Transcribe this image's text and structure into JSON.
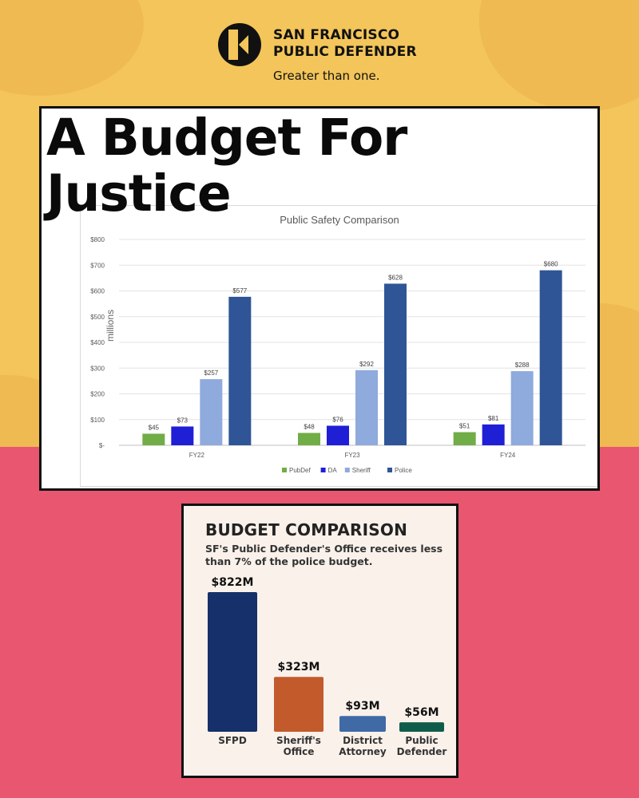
{
  "logo": {
    "line1": "SAN FRANCISCO",
    "line2": "PUBLIC DEFENDER",
    "tagline": "Greater than one."
  },
  "headline": {
    "line1": "A Budget For",
    "line2": "Justice"
  },
  "colors": {
    "top_background": "#f3c55a",
    "bottom_background": "#e9566f",
    "pubdef": "#70ad47",
    "da": "#1f1fd6",
    "sheriff": "#8faadc",
    "police": "#2f5597"
  },
  "panel2": {
    "title": "BUDGET COMPARISON",
    "subtitle": "SF's Public Defender's Office receives less than 7% of the police budget."
  },
  "chart_data": [
    {
      "type": "bar",
      "title": "Public Safety Comparison",
      "xlabel": "",
      "ylabel": "millions",
      "categories": [
        "FY22",
        "FY23",
        "FY24"
      ],
      "series": [
        {
          "name": "PubDef",
          "values": [
            45,
            48,
            51
          ],
          "color": "#70ad47"
        },
        {
          "name": "DA",
          "values": [
            73,
            76,
            81
          ],
          "color": "#1f1fd6"
        },
        {
          "name": "Sheriff",
          "values": [
            257,
            292,
            288
          ],
          "color": "#8faadc"
        },
        {
          "name": "Police",
          "values": [
            577,
            628,
            680
          ],
          "color": "#2f5597"
        }
      ],
      "data_labels": [
        [
          "$45",
          "$48",
          "$51"
        ],
        [
          "$73",
          "$76",
          "$81"
        ],
        [
          "$257",
          "$292",
          "$288"
        ],
        [
          "$577",
          "$628",
          "$680"
        ]
      ],
      "ylim": [
        0,
        800
      ],
      "y_ticks": [
        0,
        100,
        200,
        300,
        400,
        500,
        600,
        700,
        800
      ],
      "y_tick_labels": [
        "$-",
        "$100",
        "$200",
        "$300",
        "$400",
        "$500",
        "$600",
        "$700",
        "$800"
      ],
      "grid": true,
      "legend": "bottom"
    },
    {
      "type": "bar",
      "title": "BUDGET COMPARISON",
      "categories": [
        [
          "SFPD"
        ],
        [
          "Sheriff's",
          "Office"
        ],
        [
          "District",
          "Attorney"
        ],
        [
          "Public",
          "Defender"
        ]
      ],
      "values": [
        822,
        323,
        93,
        56
      ],
      "value_labels": [
        "$822M",
        "$323M",
        "$93M",
        "$56M"
      ],
      "colors": [
        "#15306a",
        "#c25a2c",
        "#3f6aa5",
        "#0f5c4a"
      ],
      "grid": false
    }
  ]
}
